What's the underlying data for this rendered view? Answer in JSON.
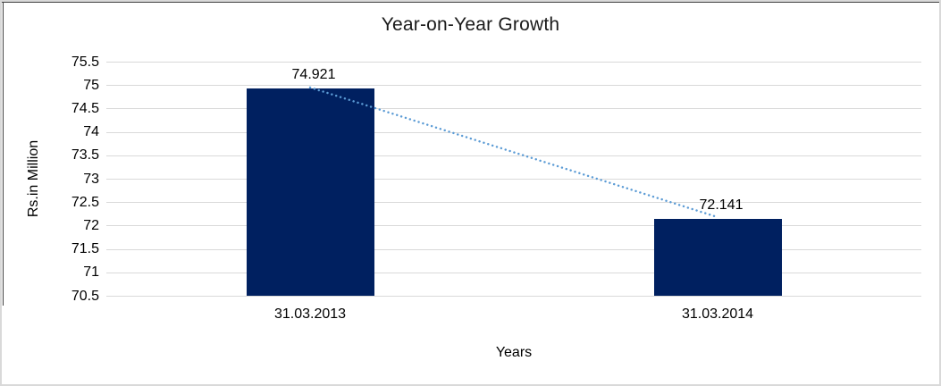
{
  "chart_data": {
    "type": "bar",
    "title": "Year-on-Year Growth",
    "xlabel": "Years",
    "ylabel": "Rs.in Million",
    "categories": [
      "31.03.2013",
      "31.03.2014"
    ],
    "values": [
      74.921,
      72.141
    ],
    "value_labels": [
      "74.921",
      "72.141"
    ],
    "ylim": [
      70.5,
      75.5
    ],
    "ytick_step": 0.5,
    "ytick_labels": [
      "75.5",
      "75",
      "74.5",
      "74",
      "73.5",
      "73",
      "72.5",
      "72",
      "71.5",
      "71",
      "70.5"
    ],
    "grid": true,
    "legend": false,
    "trendline": {
      "type": "linear",
      "style": "dotted",
      "connects_values": [
        74.921,
        72.141
      ]
    },
    "colors": {
      "bar": "#002060",
      "trendline": "#5b9bd5",
      "gridline": "#d9d9d9",
      "text": "#000000",
      "frame_outer": "#d9d9d9",
      "frame_inner_shadow": "#404040",
      "background": "#ffffff"
    }
  }
}
